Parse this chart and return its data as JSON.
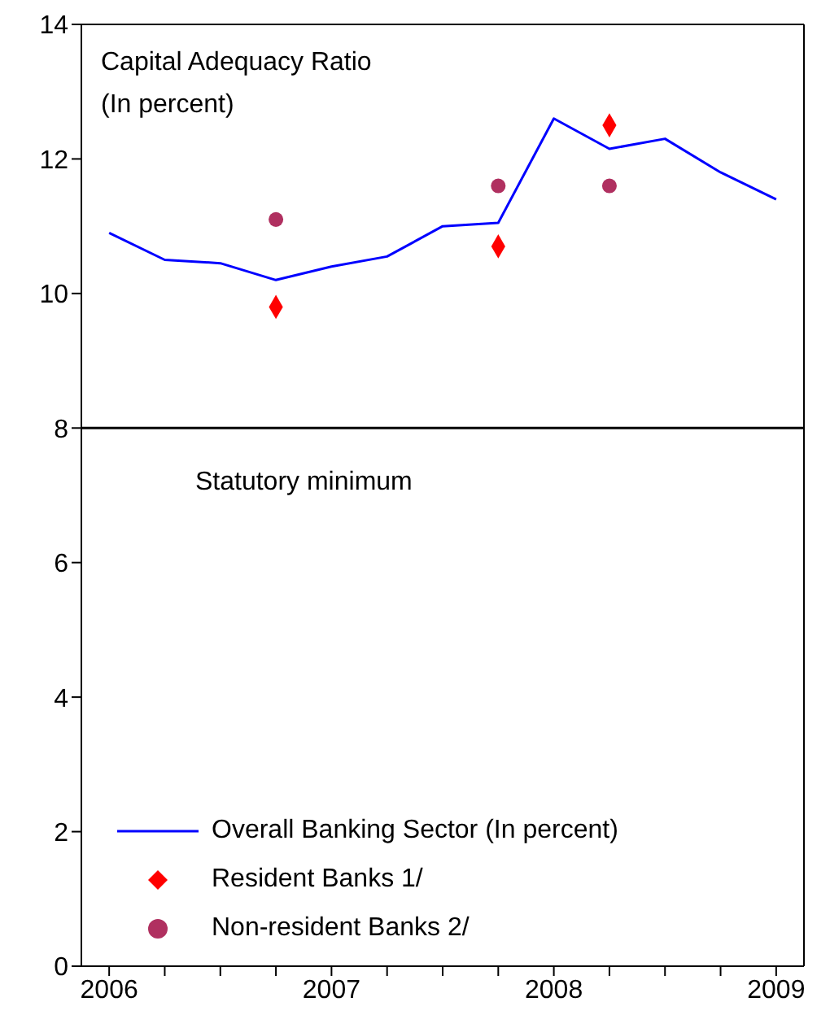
{
  "chart_data": {
    "type": "line",
    "title": "Capital Adequacy Ratio",
    "subtitle": "(In percent)",
    "categories": [
      "2006",
      null,
      null,
      null,
      "2007",
      null,
      null,
      null,
      "2008",
      null,
      null,
      null,
      "2009"
    ],
    "series": [
      {
        "name": "Overall Banking Sector (In percent)",
        "color": "#0000ff",
        "marker": "none",
        "line_style": "solid",
        "values": [
          10.9,
          10.5,
          10.45,
          10.2,
          10.4,
          10.55,
          11.0,
          11.05,
          12.6,
          12.15,
          12.3,
          11.8,
          11.4
        ]
      },
      {
        "name": "Resident Banks 1/",
        "type": "scatter",
        "color": "#ff0000",
        "marker": "diamond",
        "values": [
          null,
          null,
          null,
          9.8,
          null,
          null,
          null,
          10.7,
          null,
          12.5,
          null,
          null,
          null
        ]
      },
      {
        "name": "Non-resident Banks 2/",
        "type": "scatter",
        "color": "#b03060",
        "marker": "circle",
        "values": [
          null,
          null,
          null,
          11.1,
          null,
          null,
          null,
          11.6,
          null,
          11.6,
          null,
          null,
          null
        ]
      }
    ],
    "ylim": [
      0,
      14
    ],
    "yticks": [
      0,
      2,
      4,
      6,
      8,
      10,
      12,
      14
    ],
    "grid": false,
    "legend": "bottom left",
    "ref_lines": [
      {
        "axis": "y",
        "value": 8,
        "label": "Statutory minimum",
        "color": "#000000"
      }
    ]
  }
}
